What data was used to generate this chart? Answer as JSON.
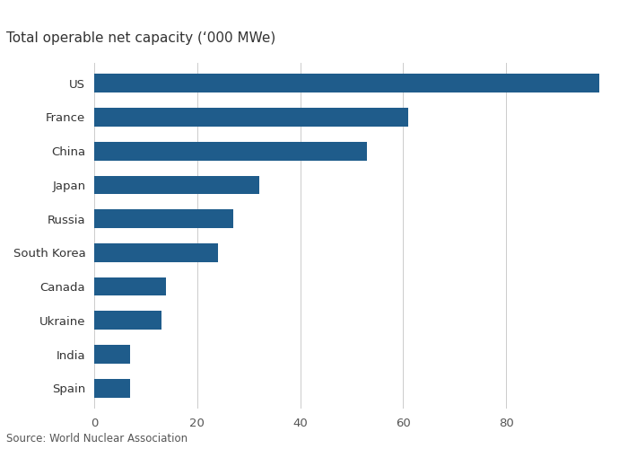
{
  "title": "Total operable net capacity (‘000 MWe)",
  "source": "Source: World Nuclear Association",
  "categories": [
    "US",
    "France",
    "China",
    "Japan",
    "Russia",
    "South Korea",
    "Canada",
    "Ukraine",
    "India",
    "Spain"
  ],
  "values": [
    98,
    61,
    53,
    32,
    27,
    24,
    14,
    13,
    7,
    7
  ],
  "bar_color": "#1f5c8b",
  "background_color": "#ffffff",
  "xlim": [
    0,
    100
  ],
  "xticks": [
    0,
    20,
    40,
    60,
    80
  ],
  "title_fontsize": 11,
  "label_fontsize": 9.5,
  "source_fontsize": 8.5,
  "tick_fontsize": 9.5,
  "bar_height": 0.55
}
